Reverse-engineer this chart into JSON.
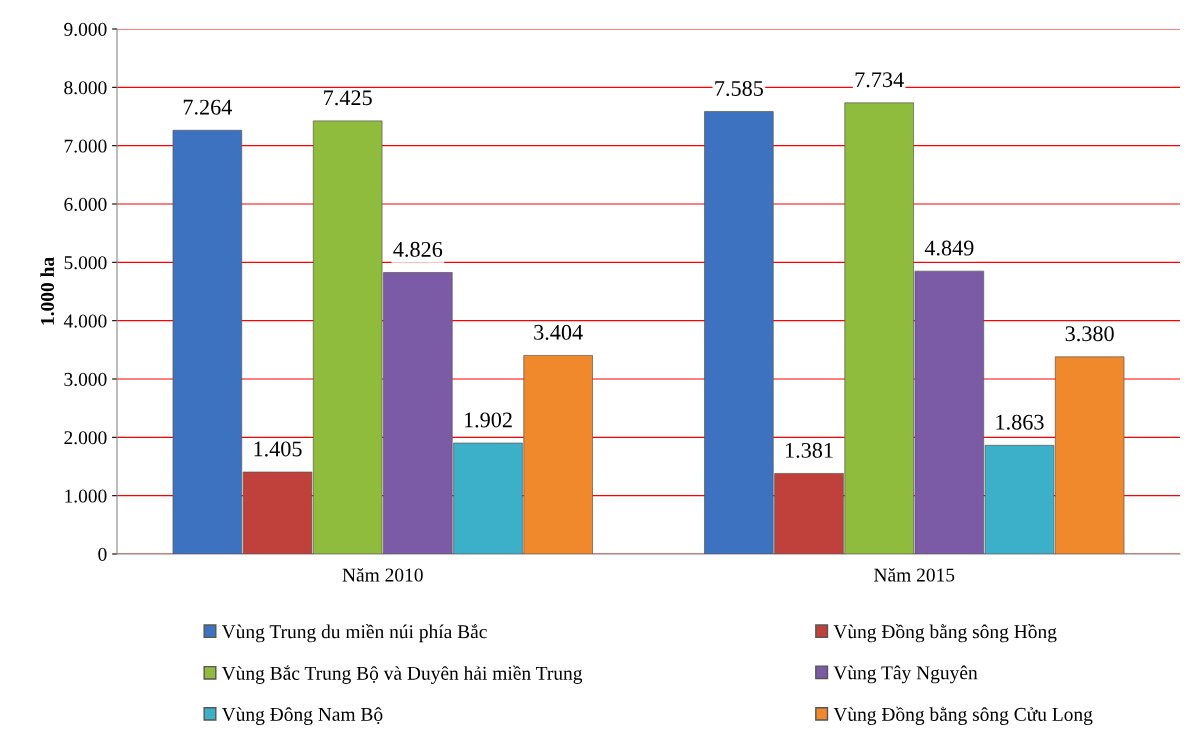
{
  "chart_data": {
    "type": "bar",
    "ylabel": "1.000 ha",
    "categories": [
      "Năm 2010",
      "Năm 2015"
    ],
    "series": [
      {
        "name": "Vùng Trung du miền núi phía Bắc",
        "color": "#3d72c0",
        "values": [
          7264,
          7585
        ],
        "value_labels": [
          "7.264",
          "7.585"
        ]
      },
      {
        "name": "Vùng Đồng bằng sông Hồng",
        "color": "#c0403c",
        "values": [
          1405,
          1381
        ],
        "value_labels": [
          "1.405",
          "1.381"
        ]
      },
      {
        "name": "Vùng Bắc Trung Bộ và Duyên hải miền Trung",
        "color": "#8fbc3c",
        "values": [
          7425,
          7734
        ],
        "value_labels": [
          "7.425",
          "7.734"
        ]
      },
      {
        "name": "Vùng Tây Nguyên",
        "color": "#7b5aa6",
        "values": [
          4826,
          4849
        ],
        "value_labels": [
          "4.826",
          "4.849"
        ]
      },
      {
        "name": "Vùng Đông Nam Bộ",
        "color": "#3cb0c8",
        "values": [
          1902,
          1863
        ],
        "value_labels": [
          "1.902",
          "1.863"
        ]
      },
      {
        "name": "Vùng Đồng bằng sông Cửu Long",
        "color": "#f0892c",
        "values": [
          3404,
          3380
        ],
        "value_labels": [
          "3.404",
          "3.380"
        ]
      }
    ],
    "ylim": [
      0,
      9000
    ],
    "yticks": [
      0,
      {
        "value": 1000,
        "label": "1.000"
      },
      {
        "value": 2000,
        "label": "2.000"
      },
      {
        "value": 3000,
        "label": "3.000"
      },
      {
        "value": 4000,
        "label": "4.000"
      },
      {
        "value": 5000,
        "label": "5.000"
      },
      {
        "value": 6000,
        "label": "6.000"
      },
      {
        "value": 7000,
        "label": "7.000"
      },
      {
        "value": 8000,
        "label": "8.000"
      },
      {
        "value": 9000,
        "label": "9.000"
      }
    ],
    "grid": "y",
    "legend": "bottom"
  }
}
